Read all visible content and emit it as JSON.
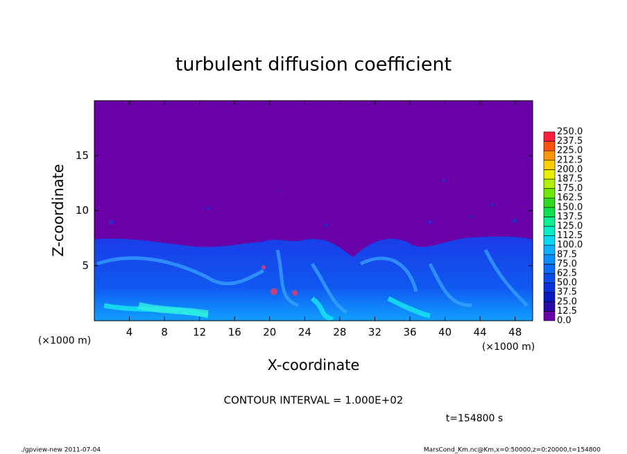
{
  "chart_data": {
    "type": "heatmap",
    "title": "turbulent diffusion coefficient",
    "xlabel": "X-coordinate",
    "ylabel": "Z-coordinate",
    "x_unit": "(×1000 m)",
    "xlim": [
      0,
      50
    ],
    "xticks": [
      4,
      8,
      12,
      16,
      20,
      24,
      28,
      32,
      36,
      40,
      44,
      48
    ],
    "ylim": [
      0,
      20
    ],
    "yticks": [
      5,
      10,
      15
    ],
    "colorbar": {
      "levels": [
        {
          "value": 0,
          "label": "0.0"
        },
        {
          "value": 12.5,
          "label": "12.5"
        },
        {
          "value": 25,
          "label": "25.0"
        },
        {
          "value": 37.5,
          "label": "37.5"
        },
        {
          "value": 50,
          "label": "50.0"
        },
        {
          "value": 62.5,
          "label": "62.5"
        },
        {
          "value": 75,
          "label": "75.0"
        },
        {
          "value": 87.5,
          "label": "87.5"
        },
        {
          "value": 100,
          "label": "100.0"
        },
        {
          "value": 112.5,
          "label": "112.5"
        },
        {
          "value": 125,
          "label": "125.0"
        },
        {
          "value": 137.5,
          "label": "137.5"
        },
        {
          "value": 150,
          "label": "150.0"
        },
        {
          "value": 162.5,
          "label": "162.5"
        },
        {
          "value": 175,
          "label": "175.0"
        },
        {
          "value": 187.5,
          "label": "187.5"
        },
        {
          "value": 200,
          "label": "200.0"
        },
        {
          "value": 212.5,
          "label": "212.5"
        },
        {
          "value": 225,
          "label": "225.0"
        },
        {
          "value": 237.5,
          "label": "237.5"
        },
        {
          "value": 250,
          "label": "250.0"
        }
      ],
      "colors": [
        "#6a00a8",
        "#2a08a8",
        "#0a18c0",
        "#0a30dc",
        "#0a4cf0",
        "#0a6cff",
        "#0890ff",
        "#08b4ff",
        "#08d8f0",
        "#08f0c8",
        "#08f090",
        "#10e050",
        "#30d820",
        "#70e800",
        "#b0f000",
        "#e8f000",
        "#ffd000",
        "#ff9800",
        "#ff5010",
        "#ff2040"
      ]
    },
    "contour_interval": "CONTOUR INTERVAL = 1.000E+02",
    "time_label": "t=154800 s",
    "footer_left": "./gpview-new   2011-07-04",
    "footer_right": "MarsCond_Km.nc@Km,x=0:50000,z=0:20000,t=154800"
  }
}
